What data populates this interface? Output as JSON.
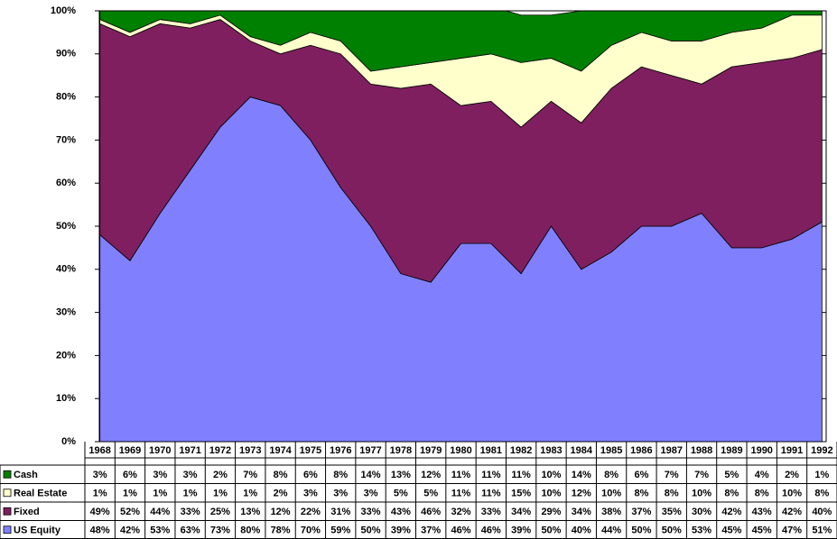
{
  "chart_data": {
    "type": "stacked-area",
    "categories": [
      "1968",
      "1969",
      "1970",
      "1971",
      "1972",
      "1973",
      "1974",
      "1975",
      "1976",
      "1977",
      "1978",
      "1979",
      "1980",
      "1981",
      "1982",
      "1983",
      "1984",
      "1985",
      "1986",
      "1987",
      "1988",
      "1989",
      "1990",
      "1991",
      "1992"
    ],
    "series": [
      {
        "name": "US Equity",
        "color": "#8080ff",
        "values": [
          48,
          42,
          53,
          63,
          73,
          80,
          78,
          70,
          59,
          50,
          39,
          37,
          46,
          46,
          39,
          50,
          40,
          44,
          50,
          50,
          53,
          45,
          45,
          47,
          51
        ],
        "value_labels": [
          "48%",
          "42%",
          "53%",
          "63%",
          "73%",
          "80%",
          "78%",
          "70%",
          "59%",
          "50%",
          "39%",
          "37%",
          "46%",
          "46%",
          "39%",
          "50%",
          "40%",
          "44%",
          "50%",
          "50%",
          "53%",
          "45%",
          "45%",
          "47%",
          "51%"
        ]
      },
      {
        "name": "Fixed",
        "color": "#7f1f5f",
        "values": [
          49,
          52,
          44,
          33,
          25,
          13,
          12,
          22,
          31,
          33,
          43,
          46,
          32,
          33,
          34,
          29,
          34,
          38,
          37,
          35,
          30,
          42,
          43,
          42,
          40
        ],
        "value_labels": [
          "49%",
          "52%",
          "44%",
          "33%",
          "25%",
          "13%",
          "12%",
          "22%",
          "31%",
          "33%",
          "43%",
          "46%",
          "32%",
          "33%",
          "34%",
          "29%",
          "34%",
          "38%",
          "37%",
          "35%",
          "30%",
          "42%",
          "43%",
          "42%",
          "40%"
        ]
      },
      {
        "name": "Real Estate",
        "color": "#ffffcc",
        "values": [
          1,
          1,
          1,
          1,
          1,
          1,
          2,
          3,
          3,
          3,
          5,
          5,
          11,
          11,
          15,
          10,
          12,
          10,
          8,
          8,
          10,
          8,
          8,
          10,
          8
        ],
        "value_labels": [
          "1%",
          "1%",
          "1%",
          "1%",
          "1%",
          "1%",
          "2%",
          "3%",
          "3%",
          "3%",
          "5%",
          "5%",
          "11%",
          "11%",
          "15%",
          "10%",
          "12%",
          "10%",
          "8%",
          "8%",
          "10%",
          "8%",
          "8%",
          "10%",
          "8%"
        ]
      },
      {
        "name": "Cash",
        "color": "#008000",
        "values": [
          3,
          6,
          3,
          3,
          2,
          7,
          8,
          6,
          8,
          14,
          13,
          12,
          11,
          11,
          11,
          10,
          14,
          8,
          6,
          7,
          7,
          5,
          4,
          2,
          1
        ],
        "value_labels": [
          "3%",
          "6%",
          "3%",
          "3%",
          "2%",
          "7%",
          "8%",
          "6%",
          "8%",
          "14%",
          "13%",
          "12%",
          "11%",
          "11%",
          "11%",
          "10%",
          "14%",
          "8%",
          "6%",
          "7%",
          "7%",
          "5%",
          "4%",
          "2%",
          "1%"
        ]
      }
    ],
    "ylim": [
      0,
      100
    ],
    "yticks": [
      {
        "value": 0,
        "label": "0%"
      },
      {
        "value": 10,
        "label": "10%"
      },
      {
        "value": 20,
        "label": "20%"
      },
      {
        "value": 30,
        "label": "30%"
      },
      {
        "value": 40,
        "label": "40%"
      },
      {
        "value": 50,
        "label": "50%"
      },
      {
        "value": 60,
        "label": "60%"
      },
      {
        "value": 70,
        "label": "70%"
      },
      {
        "value": 80,
        "label": "80%"
      },
      {
        "value": 90,
        "label": "90%"
      },
      {
        "value": 100,
        "label": "100%"
      }
    ],
    "grid": true
  }
}
